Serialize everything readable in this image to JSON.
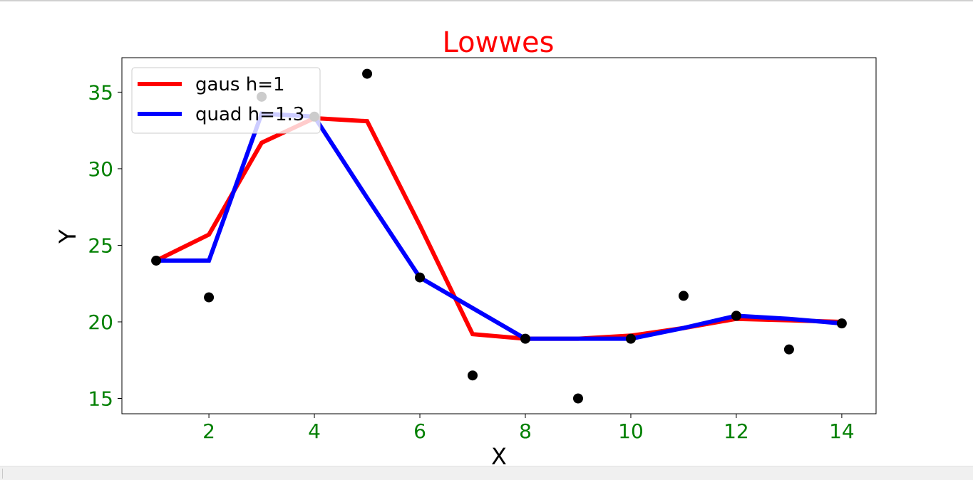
{
  "chart_data": {
    "type": "line",
    "title": "Lowwes",
    "xlabel": "X",
    "ylabel": "Y",
    "xlim": [
      0.35,
      14.65
    ],
    "ylim": [
      14,
      37.25
    ],
    "xticks": [
      2,
      4,
      6,
      8,
      10,
      12,
      14
    ],
    "yticks": [
      15,
      20,
      25,
      30,
      35
    ],
    "grid": false,
    "legend_position": "top-left",
    "points": {
      "x": [
        1,
        2,
        3,
        4,
        5,
        6,
        7,
        8,
        9,
        10,
        11,
        12,
        13,
        14
      ],
      "y": [
        24.0,
        21.6,
        34.7,
        33.4,
        36.2,
        22.9,
        16.5,
        18.9,
        15.0,
        18.9,
        21.7,
        20.4,
        18.2,
        19.9
      ],
      "color": "#000000"
    },
    "series": [
      {
        "name": "gaus h=1",
        "color": "#ff0000",
        "x": [
          1,
          2,
          3,
          4,
          5,
          6,
          7,
          8,
          9,
          10,
          11,
          12,
          13,
          14
        ],
        "y": [
          24.0,
          25.7,
          31.7,
          33.3,
          33.1,
          26.3,
          19.2,
          18.9,
          18.9,
          19.1,
          19.6,
          20.2,
          20.1,
          20.0
        ]
      },
      {
        "name": "quad h=1.3",
        "color": "#0000ff",
        "x": [
          1,
          2,
          3,
          4,
          5,
          6,
          7,
          8,
          9,
          10,
          11,
          12,
          13,
          14
        ],
        "y": [
          24.0,
          24.0,
          33.6,
          33.4,
          28.1,
          22.9,
          20.9,
          18.9,
          18.9,
          18.9,
          19.6,
          20.4,
          20.2,
          19.9
        ]
      }
    ],
    "colors": {
      "title": "#ff0000",
      "tick_labels": "#008000",
      "axis_labels": "#000000"
    }
  }
}
